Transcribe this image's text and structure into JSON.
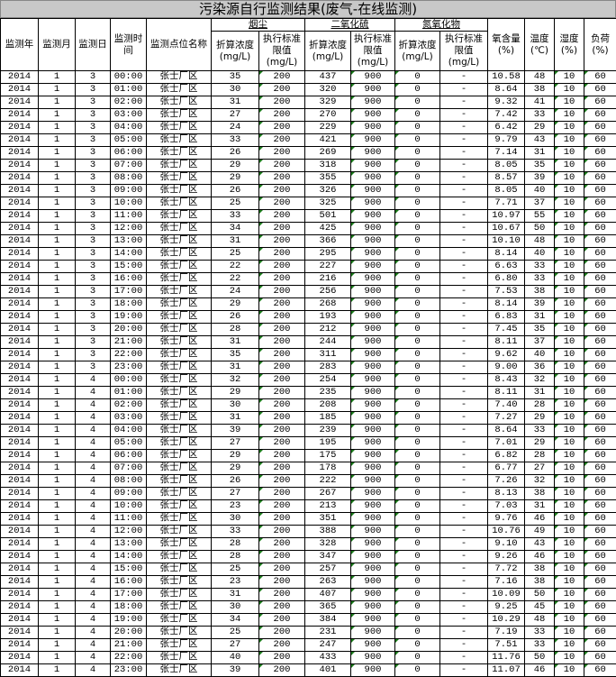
{
  "title": "污染源自行监测结果(废气-在线监测)",
  "headers": {
    "year": "监测年",
    "month": "监测月",
    "day": "监测日",
    "time": "监测时间",
    "location": "监测点位名称",
    "group_smoke": "烟尘",
    "group_so2": "二氧化硫",
    "group_nox": "氮氧化物",
    "conc": "折算浓度(mg/L)",
    "limit": "执行标准限值(mg/L)",
    "oxygen": "氧含量(%)",
    "temperature": "温度(℃)",
    "humidity": "湿度(%)",
    "load": "负荷(%)"
  },
  "accent_colors": {
    "text_number_marker": "#1a7a1a",
    "title_bg": "#c8c8c8"
  },
  "rows": [
    [
      "2014",
      "1",
      "3",
      "00:00",
      "张士厂区",
      "35",
      "200",
      "437",
      "900",
      "0",
      "-",
      "10.58",
      "48",
      "10",
      "60"
    ],
    [
      "2014",
      "1",
      "3",
      "01:00",
      "张士厂区",
      "30",
      "200",
      "320",
      "900",
      "0",
      "-",
      "8.64",
      "38",
      "10",
      "60"
    ],
    [
      "2014",
      "1",
      "3",
      "02:00",
      "张士厂区",
      "31",
      "200",
      "329",
      "900",
      "0",
      "-",
      "9.32",
      "41",
      "10",
      "60"
    ],
    [
      "2014",
      "1",
      "3",
      "03:00",
      "张士厂区",
      "27",
      "200",
      "270",
      "900",
      "0",
      "-",
      "7.42",
      "33",
      "10",
      "60"
    ],
    [
      "2014",
      "1",
      "3",
      "04:00",
      "张士厂区",
      "24",
      "200",
      "229",
      "900",
      "0",
      "-",
      "6.42",
      "29",
      "10",
      "60"
    ],
    [
      "2014",
      "1",
      "3",
      "05:00",
      "张士厂区",
      "33",
      "200",
      "421",
      "900",
      "0",
      "-",
      "9.79",
      "43",
      "10",
      "60"
    ],
    [
      "2014",
      "1",
      "3",
      "06:00",
      "张士厂区",
      "26",
      "200",
      "269",
      "900",
      "0",
      "-",
      "7.14",
      "31",
      "10",
      "60"
    ],
    [
      "2014",
      "1",
      "3",
      "07:00",
      "张士厂区",
      "29",
      "200",
      "318",
      "900",
      "0",
      "-",
      "8.05",
      "35",
      "10",
      "60"
    ],
    [
      "2014",
      "1",
      "3",
      "08:00",
      "张士厂区",
      "29",
      "200",
      "355",
      "900",
      "0",
      "-",
      "8.57",
      "39",
      "10",
      "60"
    ],
    [
      "2014",
      "1",
      "3",
      "09:00",
      "张士厂区",
      "26",
      "200",
      "326",
      "900",
      "0",
      "-",
      "8.05",
      "40",
      "10",
      "60"
    ],
    [
      "2014",
      "1",
      "3",
      "10:00",
      "张士厂区",
      "25",
      "200",
      "325",
      "900",
      "0",
      "-",
      "7.71",
      "37",
      "10",
      "60"
    ],
    [
      "2014",
      "1",
      "3",
      "11:00",
      "张士厂区",
      "33",
      "200",
      "501",
      "900",
      "0",
      "-",
      "10.97",
      "55",
      "10",
      "60"
    ],
    [
      "2014",
      "1",
      "3",
      "12:00",
      "张士厂区",
      "34",
      "200",
      "425",
      "900",
      "0",
      "-",
      "10.67",
      "50",
      "10",
      "60"
    ],
    [
      "2014",
      "1",
      "3",
      "13:00",
      "张士厂区",
      "31",
      "200",
      "366",
      "900",
      "0",
      "-",
      "10.10",
      "48",
      "10",
      "60"
    ],
    [
      "2014",
      "1",
      "3",
      "14:00",
      "张士厂区",
      "25",
      "200",
      "295",
      "900",
      "0",
      "-",
      "8.14",
      "40",
      "10",
      "60"
    ],
    [
      "2014",
      "1",
      "3",
      "15:00",
      "张士厂区",
      "22",
      "200",
      "227",
      "900",
      "0",
      "-",
      "6.63",
      "33",
      "10",
      "60"
    ],
    [
      "2014",
      "1",
      "3",
      "16:00",
      "张士厂区",
      "22",
      "200",
      "216",
      "900",
      "0",
      "-",
      "6.80",
      "33",
      "10",
      "60"
    ],
    [
      "2014",
      "1",
      "3",
      "17:00",
      "张士厂区",
      "24",
      "200",
      "256",
      "900",
      "0",
      "-",
      "7.53",
      "38",
      "10",
      "60"
    ],
    [
      "2014",
      "1",
      "3",
      "18:00",
      "张士厂区",
      "29",
      "200",
      "268",
      "900",
      "0",
      "-",
      "8.14",
      "39",
      "10",
      "60"
    ],
    [
      "2014",
      "1",
      "3",
      "19:00",
      "张士厂区",
      "26",
      "200",
      "193",
      "900",
      "0",
      "-",
      "6.83",
      "31",
      "10",
      "60"
    ],
    [
      "2014",
      "1",
      "3",
      "20:00",
      "张士厂区",
      "28",
      "200",
      "212",
      "900",
      "0",
      "-",
      "7.45",
      "35",
      "10",
      "60"
    ],
    [
      "2014",
      "1",
      "3",
      "21:00",
      "张士厂区",
      "31",
      "200",
      "244",
      "900",
      "0",
      "-",
      "8.11",
      "37",
      "10",
      "60"
    ],
    [
      "2014",
      "1",
      "3",
      "22:00",
      "张士厂区",
      "35",
      "200",
      "311",
      "900",
      "0",
      "-",
      "9.62",
      "40",
      "10",
      "60"
    ],
    [
      "2014",
      "1",
      "3",
      "23:00",
      "张士厂区",
      "31",
      "200",
      "283",
      "900",
      "0",
      "-",
      "9.00",
      "36",
      "10",
      "60"
    ],
    [
      "2014",
      "1",
      "4",
      "00:00",
      "张士厂区",
      "32",
      "200",
      "254",
      "900",
      "0",
      "-",
      "8.43",
      "32",
      "10",
      "60"
    ],
    [
      "2014",
      "1",
      "4",
      "01:00",
      "张士厂区",
      "29",
      "200",
      "235",
      "900",
      "0",
      "-",
      "8.11",
      "31",
      "10",
      "60"
    ],
    [
      "2014",
      "1",
      "4",
      "02:00",
      "张士厂区",
      "30",
      "200",
      "208",
      "900",
      "0",
      "-",
      "7.40",
      "28",
      "10",
      "60"
    ],
    [
      "2014",
      "1",
      "4",
      "03:00",
      "张士厂区",
      "31",
      "200",
      "185",
      "900",
      "0",
      "-",
      "7.27",
      "29",
      "10",
      "60"
    ],
    [
      "2014",
      "1",
      "4",
      "04:00",
      "张士厂区",
      "39",
      "200",
      "239",
      "900",
      "0",
      "-",
      "8.64",
      "33",
      "10",
      "60"
    ],
    [
      "2014",
      "1",
      "4",
      "05:00",
      "张士厂区",
      "27",
      "200",
      "195",
      "900",
      "0",
      "-",
      "7.01",
      "29",
      "10",
      "60"
    ],
    [
      "2014",
      "1",
      "4",
      "06:00",
      "张士厂区",
      "29",
      "200",
      "175",
      "900",
      "0",
      "-",
      "6.82",
      "28",
      "10",
      "60"
    ],
    [
      "2014",
      "1",
      "4",
      "07:00",
      "张士厂区",
      "29",
      "200",
      "178",
      "900",
      "0",
      "-",
      "6.77",
      "27",
      "10",
      "60"
    ],
    [
      "2014",
      "1",
      "4",
      "08:00",
      "张士厂区",
      "26",
      "200",
      "222",
      "900",
      "0",
      "-",
      "7.26",
      "32",
      "10",
      "60"
    ],
    [
      "2014",
      "1",
      "4",
      "09:00",
      "张士厂区",
      "27",
      "200",
      "267",
      "900",
      "0",
      "-",
      "8.13",
      "38",
      "10",
      "60"
    ],
    [
      "2014",
      "1",
      "4",
      "10:00",
      "张士厂区",
      "23",
      "200",
      "213",
      "900",
      "0",
      "-",
      "7.03",
      "31",
      "10",
      "60"
    ],
    [
      "2014",
      "1",
      "4",
      "11:00",
      "张士厂区",
      "30",
      "200",
      "351",
      "900",
      "0",
      "-",
      "9.76",
      "46",
      "10",
      "60"
    ],
    [
      "2014",
      "1",
      "4",
      "12:00",
      "张士厂区",
      "33",
      "200",
      "388",
      "900",
      "0",
      "-",
      "10.76",
      "49",
      "10",
      "60"
    ],
    [
      "2014",
      "1",
      "4",
      "13:00",
      "张士厂区",
      "28",
      "200",
      "328",
      "900",
      "0",
      "-",
      "9.10",
      "43",
      "10",
      "60"
    ],
    [
      "2014",
      "1",
      "4",
      "14:00",
      "张士厂区",
      "28",
      "200",
      "347",
      "900",
      "0",
      "-",
      "9.26",
      "46",
      "10",
      "60"
    ],
    [
      "2014",
      "1",
      "4",
      "15:00",
      "张士厂区",
      "25",
      "200",
      "257",
      "900",
      "0",
      "-",
      "7.72",
      "38",
      "10",
      "60"
    ],
    [
      "2014",
      "1",
      "4",
      "16:00",
      "张士厂区",
      "23",
      "200",
      "263",
      "900",
      "0",
      "-",
      "7.16",
      "38",
      "10",
      "60"
    ],
    [
      "2014",
      "1",
      "4",
      "17:00",
      "张士厂区",
      "31",
      "200",
      "407",
      "900",
      "0",
      "-",
      "10.09",
      "50",
      "10",
      "60"
    ],
    [
      "2014",
      "1",
      "4",
      "18:00",
      "张士厂区",
      "30",
      "200",
      "365",
      "900",
      "0",
      "-",
      "9.25",
      "45",
      "10",
      "60"
    ],
    [
      "2014",
      "1",
      "4",
      "19:00",
      "张士厂区",
      "34",
      "200",
      "384",
      "900",
      "0",
      "-",
      "10.29",
      "48",
      "10",
      "60"
    ],
    [
      "2014",
      "1",
      "4",
      "20:00",
      "张士厂区",
      "25",
      "200",
      "231",
      "900",
      "0",
      "-",
      "7.19",
      "33",
      "10",
      "60"
    ],
    [
      "2014",
      "1",
      "4",
      "21:00",
      "张士厂区",
      "27",
      "200",
      "247",
      "900",
      "0",
      "-",
      "7.51",
      "33",
      "10",
      "60"
    ],
    [
      "2014",
      "1",
      "4",
      "22:00",
      "张士厂区",
      "40",
      "200",
      "433",
      "900",
      "0",
      "-",
      "11.76",
      "50",
      "10",
      "60"
    ],
    [
      "2014",
      "1",
      "4",
      "23:00",
      "张士厂区",
      "39",
      "200",
      "401",
      "900",
      "0",
      "-",
      "11.07",
      "46",
      "10",
      "60"
    ]
  ]
}
